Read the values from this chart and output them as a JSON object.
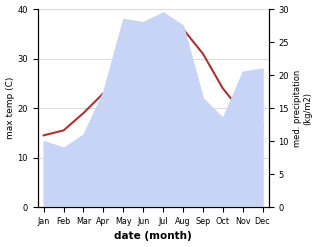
{
  "months": [
    "Jan",
    "Feb",
    "Mar",
    "Apr",
    "May",
    "Jun",
    "Jul",
    "Aug",
    "Sep",
    "Oct",
    "Nov",
    "Dec"
  ],
  "month_indices": [
    0,
    1,
    2,
    3,
    4,
    5,
    6,
    7,
    8,
    9,
    10,
    11
  ],
  "max_temp": [
    14.5,
    15.5,
    19.0,
    23.0,
    24.5,
    35.0,
    34.5,
    36.0,
    31.0,
    24.0,
    19.0,
    16.0
  ],
  "precipitation": [
    10.0,
    9.0,
    11.0,
    17.5,
    28.5,
    28.0,
    29.5,
    27.5,
    16.5,
    13.5,
    20.5,
    21.0
  ],
  "temp_color": "#aa3333",
  "precip_fill_color": "#c8d4f5",
  "temp_ylim": [
    0,
    40
  ],
  "precip_ylim": [
    0,
    30
  ],
  "xlabel": "date (month)",
  "ylabel_left": "max temp (C)",
  "ylabel_right": "med. precipitation\n(kg/m2)",
  "bg_color": "#ffffff",
  "grid_color": "#cccccc"
}
